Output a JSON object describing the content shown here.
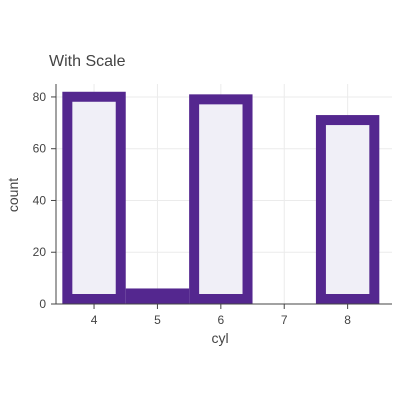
{
  "chart_data": {
    "type": "bar",
    "title": "With Scale",
    "xlabel": "cyl",
    "ylabel": "count",
    "categories": [
      "4",
      "5",
      "6",
      "7",
      "8"
    ],
    "values": [
      82,
      6,
      81,
      0,
      73
    ],
    "xlim": [
      3.4,
      8.7
    ],
    "ylim": [
      0,
      85
    ],
    "x_ticks": [
      4,
      5,
      6,
      7,
      8
    ],
    "y_ticks": [
      0,
      20,
      40,
      60,
      80
    ],
    "grid": true,
    "bar_fill_color": "#f0eff7",
    "bar_outline_color": "#54278f"
  }
}
